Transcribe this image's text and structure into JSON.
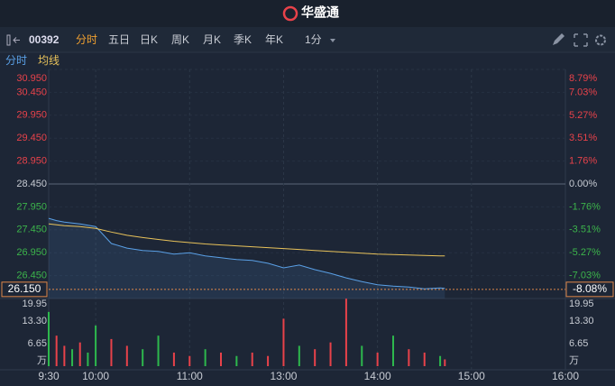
{
  "header": {
    "title": "华盛通"
  },
  "toolbar": {
    "code": "00392",
    "tabs": [
      "分时",
      "五日",
      "日K",
      "周K",
      "月K",
      "季K",
      "年K"
    ],
    "interval": "1分"
  },
  "chart_data": [
    {
      "type": "line",
      "x": [
        0,
        5,
        10,
        15,
        20,
        25,
        30,
        40,
        50,
        60,
        70,
        80,
        90,
        100,
        110,
        120,
        130,
        140,
        150,
        160,
        170,
        180,
        190,
        200,
        210,
        220,
        230,
        240,
        250,
        253
      ],
      "series": [
        {
          "name": "分时",
          "color": "#5aa0e6",
          "values": [
            27.7,
            27.65,
            27.62,
            27.6,
            27.58,
            27.55,
            27.52,
            27.15,
            27.05,
            27.0,
            26.98,
            26.92,
            26.95,
            26.88,
            26.84,
            26.8,
            26.78,
            26.72,
            26.62,
            26.68,
            26.58,
            26.5,
            26.4,
            26.32,
            26.25,
            26.22,
            26.2,
            26.16,
            26.18,
            26.17
          ]
        },
        {
          "name": "均线",
          "color": "#e8c25a",
          "values": [
            27.58,
            27.56,
            27.54,
            27.53,
            27.52,
            27.5,
            27.48,
            27.4,
            27.33,
            27.28,
            27.24,
            27.2,
            27.17,
            27.14,
            27.12,
            27.1,
            27.08,
            27.06,
            27.04,
            27.02,
            27.0,
            26.98,
            26.96,
            26.94,
            26.92,
            26.91,
            26.9,
            26.89,
            26.88,
            26.88
          ]
        }
      ],
      "ylim": [
        25.95,
        30.95
      ],
      "yticks": [
        {
          "value": 30.95,
          "label": "30.950"
        },
        {
          "value": 30.45,
          "label": "30.450"
        },
        {
          "value": 29.95,
          "label": "29.950"
        },
        {
          "value": 29.45,
          "label": "29.450"
        },
        {
          "value": 28.95,
          "label": "28.950"
        },
        {
          "value": 28.45,
          "label": "28.450"
        },
        {
          "value": 27.95,
          "label": "27.950"
        },
        {
          "value": 27.45,
          "label": "27.450"
        },
        {
          "value": 26.95,
          "label": "26.950"
        },
        {
          "value": 26.45,
          "label": "26.450"
        }
      ],
      "y2lim": [
        -8.79,
        8.79
      ],
      "y2ticks": [
        {
          "value": 8.79,
          "label": "8.79%"
        },
        {
          "value": 7.03,
          "label": "7.03%"
        },
        {
          "value": 5.27,
          "label": "5.27%"
        },
        {
          "value": 3.51,
          "label": "3.51%"
        },
        {
          "value": 1.76,
          "label": "1.76%"
        },
        {
          "value": 0,
          "label": "0.00%"
        },
        {
          "value": -1.76,
          "label": "-1.76%"
        },
        {
          "value": -3.51,
          "label": "-3.51%"
        },
        {
          "value": -5.27,
          "label": "-5.27%"
        },
        {
          "value": -7.03,
          "label": "-7.03%"
        }
      ],
      "last_price": {
        "value": 26.15,
        "label": "26.150"
      },
      "last_change": {
        "value": -8.08,
        "label": "-8.08%"
      }
    },
    {
      "type": "bar",
      "x": [
        0,
        5,
        10,
        15,
        20,
        25,
        30,
        40,
        50,
        60,
        70,
        80,
        90,
        100,
        110,
        120,
        130,
        140,
        150,
        160,
        170,
        180,
        190,
        200,
        210,
        220,
        230,
        240,
        250,
        253
      ],
      "values": [
        16,
        9,
        6,
        5,
        7,
        4,
        12,
        8,
        6,
        5,
        9,
        4,
        3,
        5,
        4,
        3,
        4,
        3,
        14,
        6,
        5,
        7,
        19.9,
        6,
        4,
        9,
        5,
        4,
        3,
        2
      ],
      "colors": [
        "#2db84d",
        "#e8424a",
        "#e8424a",
        "#2db84d",
        "#e8424a",
        "#2db84d",
        "#2db84d",
        "#e8424a",
        "#e8424a",
        "#2db84d",
        "#2db84d",
        "#e8424a",
        "#e8424a",
        "#2db84d",
        "#e8424a",
        "#2db84d",
        "#e8424a",
        "#e8424a",
        "#e8424a",
        "#2db84d",
        "#e8424a",
        "#e8424a",
        "#e8424a",
        "#2db84d",
        "#e8424a",
        "#2db84d",
        "#e8424a",
        "#e8424a",
        "#2db84d",
        "#e8424a"
      ],
      "ylim": [
        0,
        19.95
      ],
      "yticks": [
        19.95,
        {
          "value": 13.3,
          "label": "13.30"
        },
        6.65
      ],
      "volume_unit": "万",
      "xlim": [
        0,
        330
      ],
      "xticks": [
        {
          "value": 0,
          "label": "9:30"
        },
        {
          "value": 30,
          "label": "10:00"
        },
        {
          "value": 90,
          "label": "11:00"
        },
        {
          "value": 150,
          "label": "13:00"
        },
        {
          "value": 210,
          "label": "14:00"
        },
        {
          "value": 270,
          "label": "15:00"
        },
        {
          "value": 330,
          "label": "16:00"
        }
      ]
    }
  ]
}
